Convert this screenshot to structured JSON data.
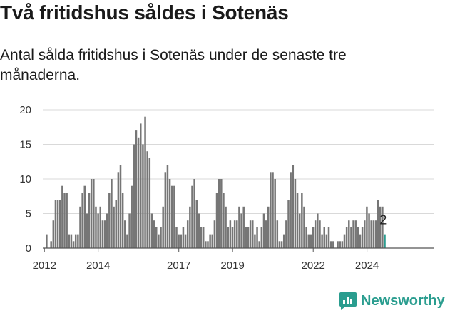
{
  "title": "Två fritidshus såldes i Sotenäs",
  "subtitle": "Antal sålda fritidshus i Sotenäs under de senaste tre månaderna.",
  "logo": {
    "text": "Newsworthy",
    "icon": "newsworthy-chart-icon",
    "color": "#2a9d8f"
  },
  "colors": {
    "bar": "#767676",
    "highlight": "#2a9d8f",
    "grid": "#d9d9d9",
    "axis": "#555555"
  },
  "chart_data": {
    "type": "bar",
    "title": "Två fritidshus såldes i Sotenäs",
    "subtitle": "Antal sålda fritidshus i Sotenäs under de senaste tre månaderna.",
    "ylim": [
      0,
      20
    ],
    "yticks": [
      0,
      5,
      10,
      15,
      20
    ],
    "x_start": 2012.0,
    "x_step": 0.0833,
    "xticks": [
      {
        "label": "2012",
        "year": 2012.0
      },
      {
        "label": "2014",
        "year": 2014.0
      },
      {
        "label": "2017",
        "year": 2017.0
      },
      {
        "label": "2019",
        "year": 2019.0
      },
      {
        "label": "2022",
        "year": 2022.0
      },
      {
        "label": "2024",
        "year": 2024.0
      }
    ],
    "grid": true,
    "values": [
      0,
      2,
      0,
      1,
      4,
      7,
      7,
      7,
      9,
      8,
      8,
      2,
      2,
      1,
      2,
      2,
      6,
      8,
      9,
      5,
      8,
      10,
      10,
      6,
      5,
      6,
      4,
      4,
      5,
      8,
      10,
      6,
      7,
      11,
      12,
      8,
      4,
      2,
      5,
      9,
      15,
      17,
      16,
      18,
      15,
      19,
      14,
      13,
      5,
      4,
      3,
      2,
      3,
      6,
      11,
      12,
      10,
      9,
      9,
      3,
      2,
      2,
      3,
      2,
      4,
      6,
      9,
      10,
      7,
      5,
      3,
      3,
      1,
      1,
      2,
      2,
      4,
      8,
      10,
      10,
      8,
      6,
      3,
      4,
      3,
      4,
      4,
      6,
      5,
      6,
      3,
      3,
      4,
      4,
      2,
      3,
      1,
      3,
      5,
      4,
      6,
      11,
      11,
      10,
      4,
      1,
      1,
      2,
      4,
      7,
      11,
      12,
      10,
      8,
      5,
      8,
      6,
      3,
      2,
      2,
      3,
      4,
      5,
      4,
      2,
      3,
      2,
      3,
      1,
      1,
      0,
      1,
      1,
      1,
      2,
      3,
      4,
      3,
      4,
      4,
      3,
      2,
      3,
      4,
      6,
      5,
      4,
      4,
      4,
      7,
      6,
      6,
      2
    ],
    "highlight_last": true,
    "last_value_label": "2"
  }
}
